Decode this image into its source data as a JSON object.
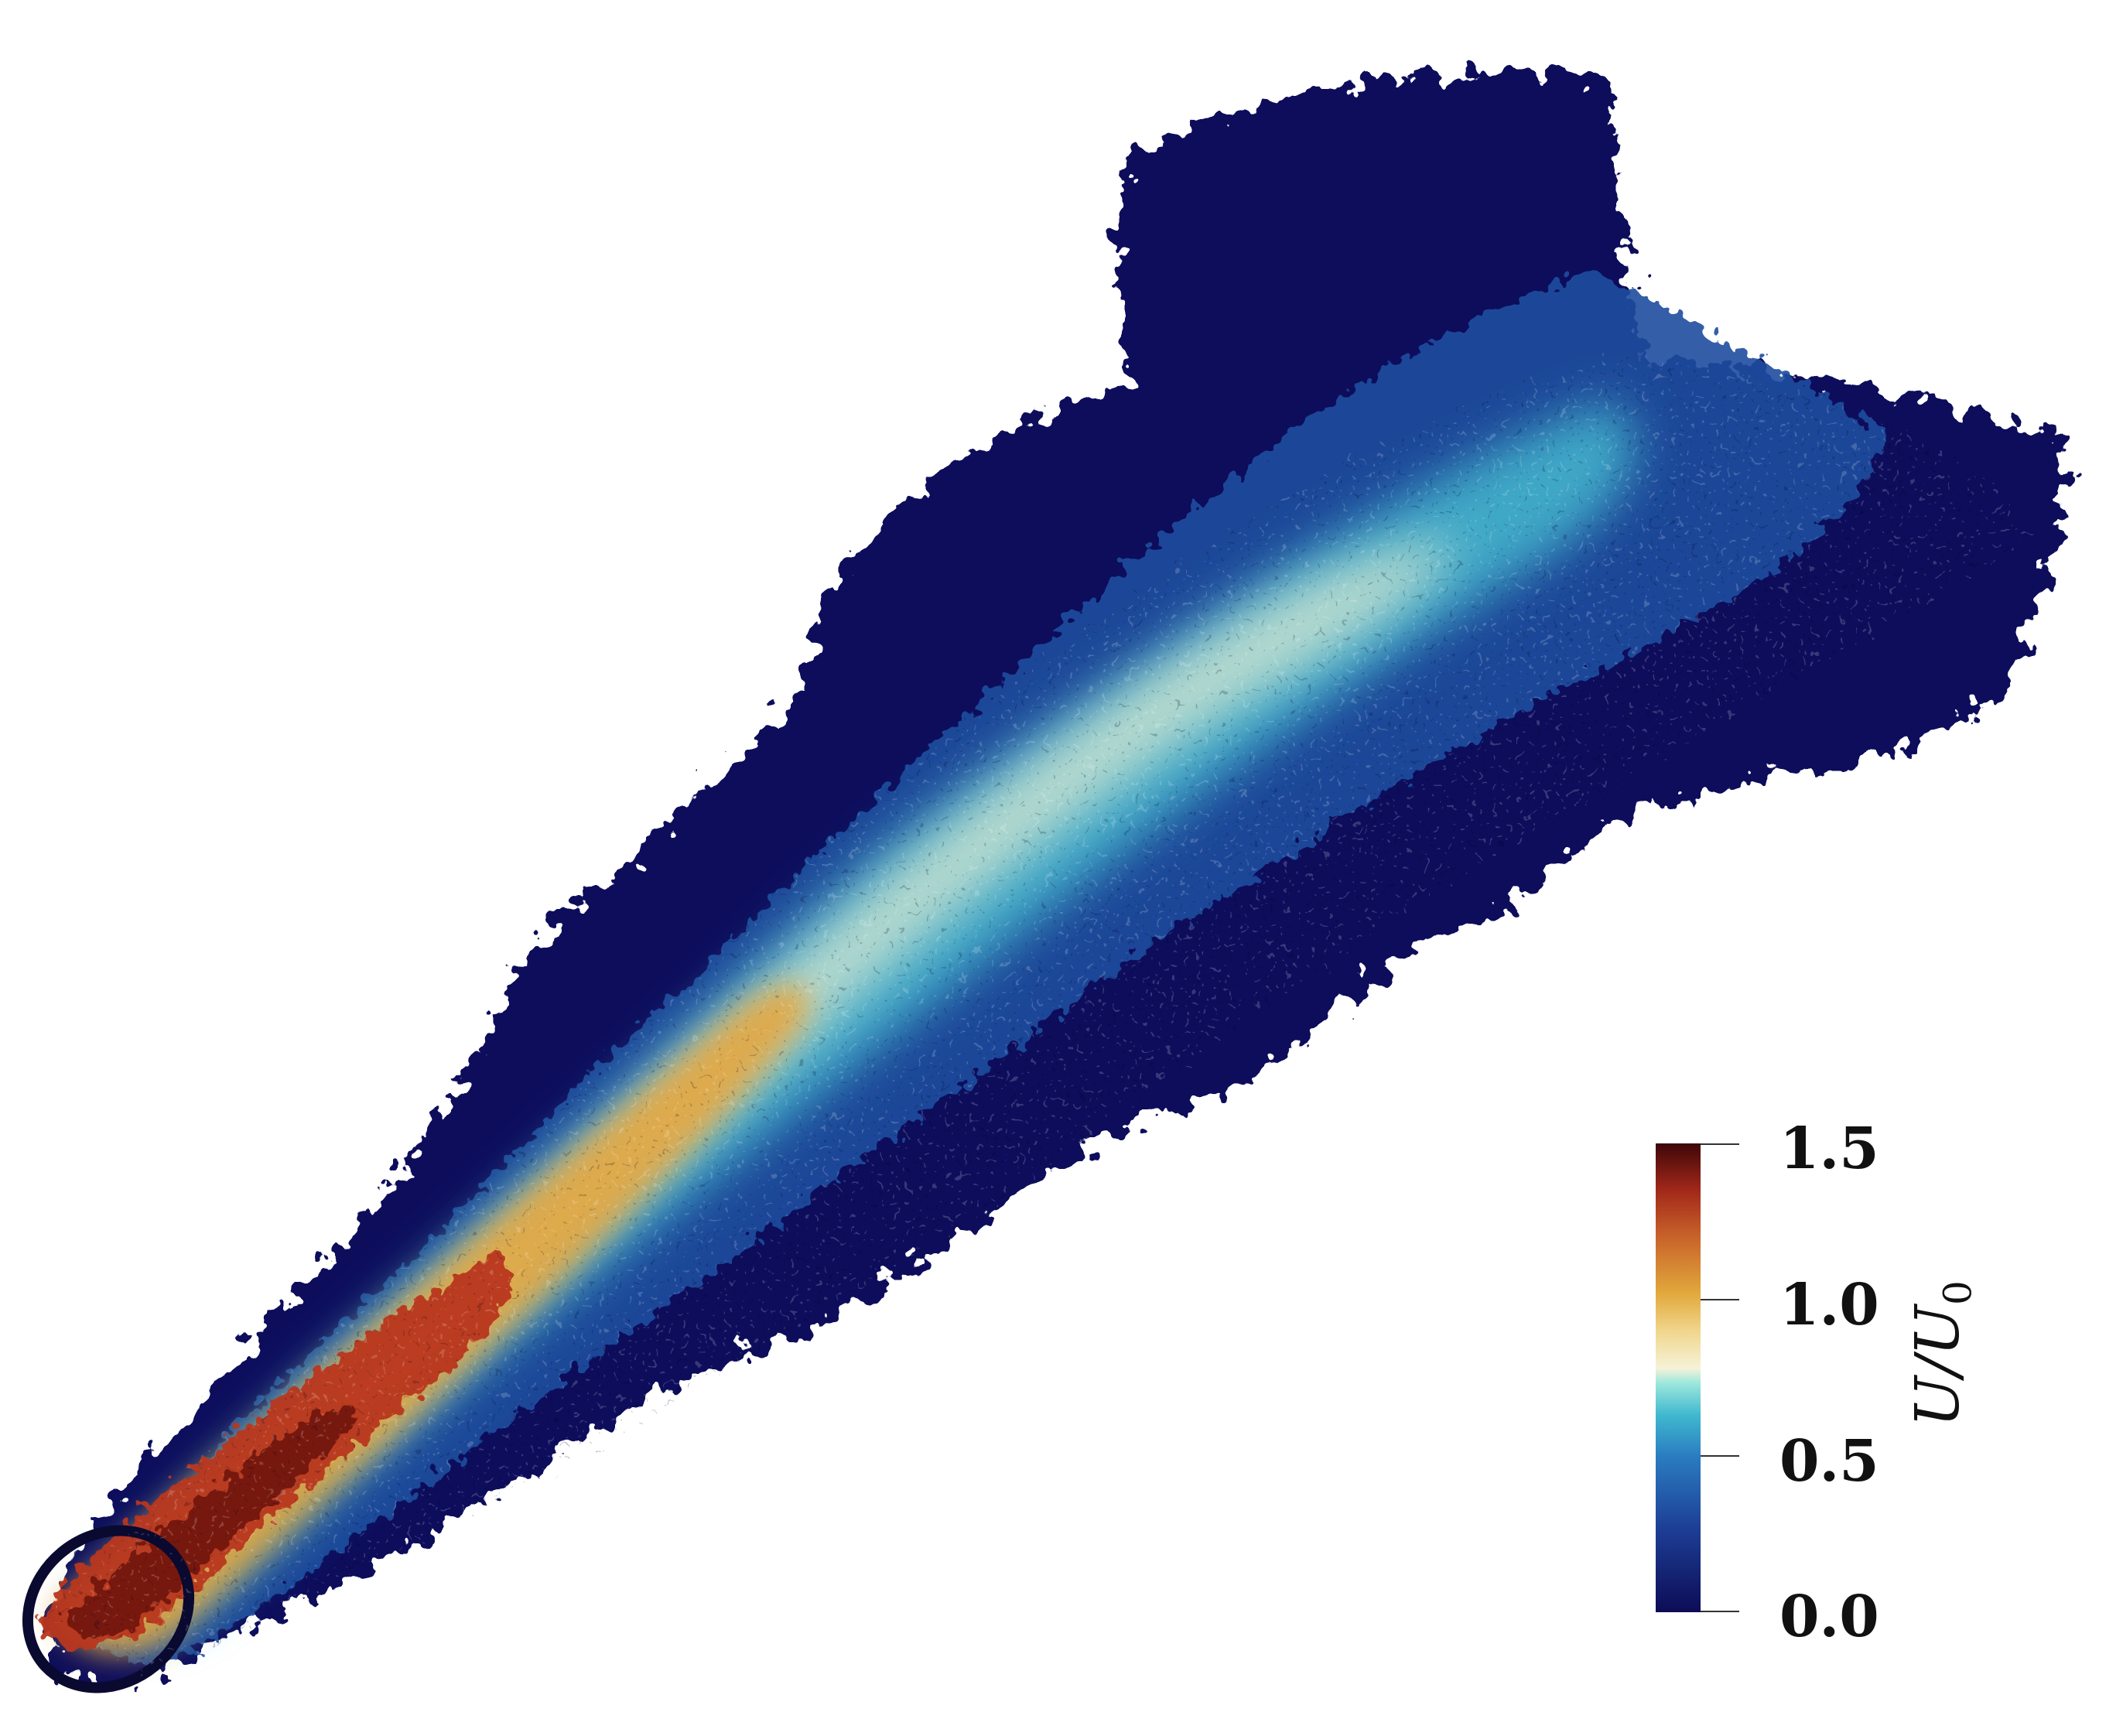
{
  "figure": {
    "description_colors": {
      "low": "#0d0c56",
      "mid_low": "#2a7bc0",
      "mid": "#5fd9d0",
      "neutral": "#f6f2d8",
      "mid_high": "#e2a83c",
      "high": "#b9381b",
      "max": "#3e0708"
    }
  },
  "colorbar": {
    "title_main": "U/U",
    "title_sub": "0",
    "ticks": [
      "1.5",
      "1.0",
      "0.5",
      "0.0"
    ],
    "range": [
      0.0,
      1.5
    ]
  }
}
